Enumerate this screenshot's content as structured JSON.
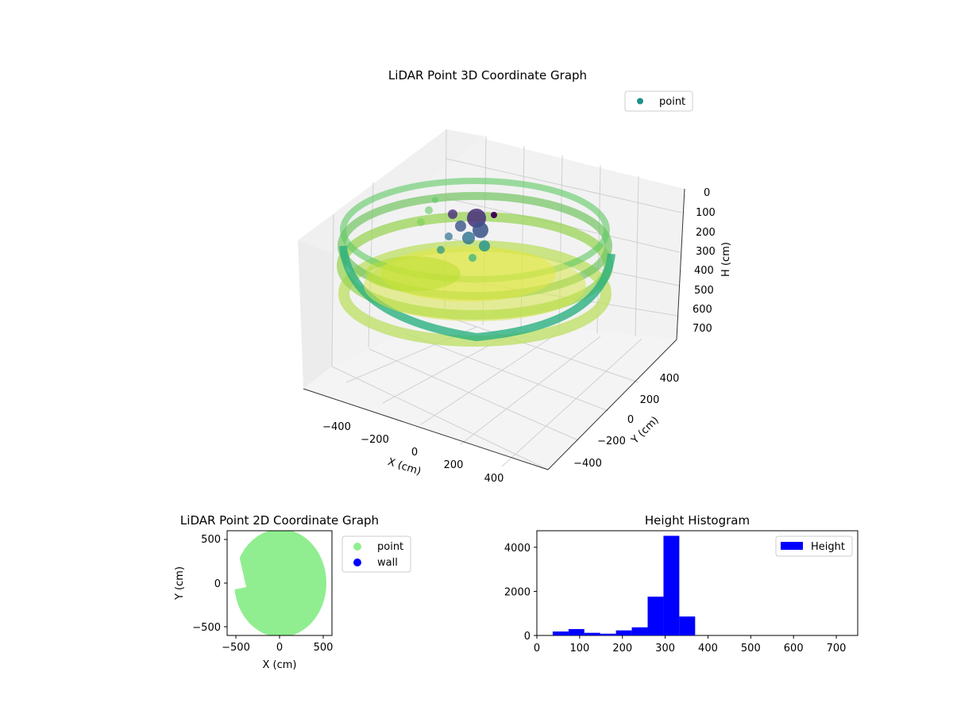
{
  "chart_data": [
    {
      "type": "scatter",
      "kind": "3d",
      "title": "LiDAR Point 3D Coordinate Graph",
      "xlabel": "X (cm)",
      "ylabel": "Y (cm)",
      "zlabel": "H (cm)",
      "x_ticks": [
        "−400",
        "−200",
        "0",
        "200",
        "400"
      ],
      "y_ticks": [
        "400",
        "200",
        "0",
        "−200",
        "−400"
      ],
      "z_ticks": [
        "0",
        "100",
        "200",
        "300",
        "400",
        "500",
        "600",
        "700"
      ],
      "z_inverted": true,
      "colormap": "viridis",
      "legend": {
        "label": "point",
        "color": "#21918c",
        "placement": "upper-right"
      },
      "shape": "circular wall of radius ~480 cm with height ~300-400 cm, floor points near 600 cm, cluster near center-top at 100-200 cm",
      "grid": true
    },
    {
      "type": "scatter",
      "title": "LiDAR Point 2D Coordinate Graph",
      "xlabel": "X (cm)",
      "ylabel": "Y (cm)",
      "xlim": [
        -560,
        560
      ],
      "ylim": [
        -580,
        600
      ],
      "x_ticks": [
        "−500",
        "0",
        "500"
      ],
      "y_ticks": [
        "500",
        "0",
        "−500"
      ],
      "series": [
        {
          "name": "point",
          "color": "#90ee90"
        },
        {
          "name": "wall",
          "color": "#0000ff"
        }
      ],
      "legend_placement": "outside-right"
    },
    {
      "type": "bar",
      "title": "Height Histogram",
      "series_name": "Height",
      "color": "#0000ff",
      "bin_edges": [
        37,
        74,
        111,
        148,
        185,
        222,
        259,
        296,
        333,
        370
      ],
      "values": [
        180,
        290,
        120,
        80,
        230,
        370,
        1760,
        4520,
        860
      ],
      "xlim": [
        0,
        750
      ],
      "ylim": [
        0,
        4750
      ],
      "x_ticks": [
        0,
        100,
        200,
        300,
        400,
        500,
        600,
        700
      ],
      "y_ticks": [
        0,
        2000,
        4000
      ],
      "legend_placement": "upper-right"
    }
  ]
}
